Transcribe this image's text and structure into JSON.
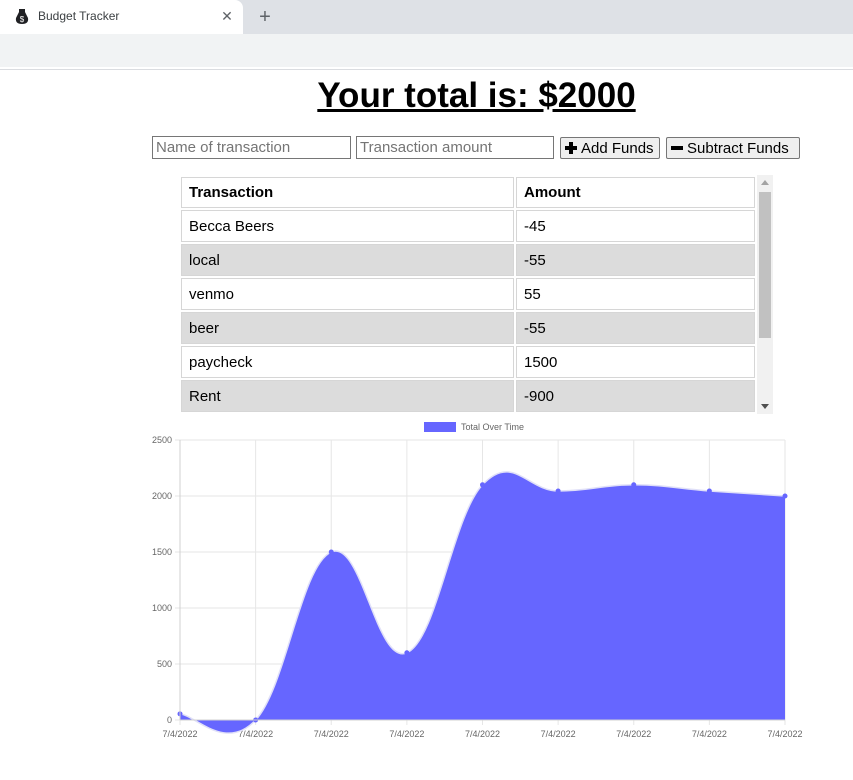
{
  "browser": {
    "tab_title": "Budget Tracker",
    "close_glyph": "✕",
    "new_tab_glyph": "+"
  },
  "page": {
    "title": "Your total is: $2000"
  },
  "form": {
    "name_placeholder": "Name of transaction",
    "amount_placeholder": "Transaction amount",
    "add_label": "Add Funds",
    "subtract_label": "Subtract Funds"
  },
  "table": {
    "headers": [
      "Transaction",
      "Amount"
    ],
    "rows": [
      [
        "Becca Beers",
        "-45"
      ],
      [
        "local",
        "-55"
      ],
      [
        "venmo",
        "55"
      ],
      [
        "beer",
        "-55"
      ],
      [
        "paycheck",
        "1500"
      ],
      [
        "Rent",
        "-900"
      ]
    ]
  },
  "chart_data": {
    "type": "area",
    "legend": "Total Over Time",
    "legend_position": "top",
    "color": "#6666ff",
    "categories": [
      "7/4/2022",
      "7/4/2022",
      "7/4/2022",
      "7/4/2022",
      "7/4/2022",
      "7/4/2022",
      "7/4/2022",
      "7/4/2022",
      "7/4/2022"
    ],
    "values": [
      55,
      0,
      1500,
      600,
      2100,
      2045,
      2100,
      2045,
      2000
    ],
    "ylim": [
      0,
      2500
    ],
    "yticks": [
      0,
      500,
      1000,
      1500,
      2000,
      2500
    ],
    "grid": true
  }
}
